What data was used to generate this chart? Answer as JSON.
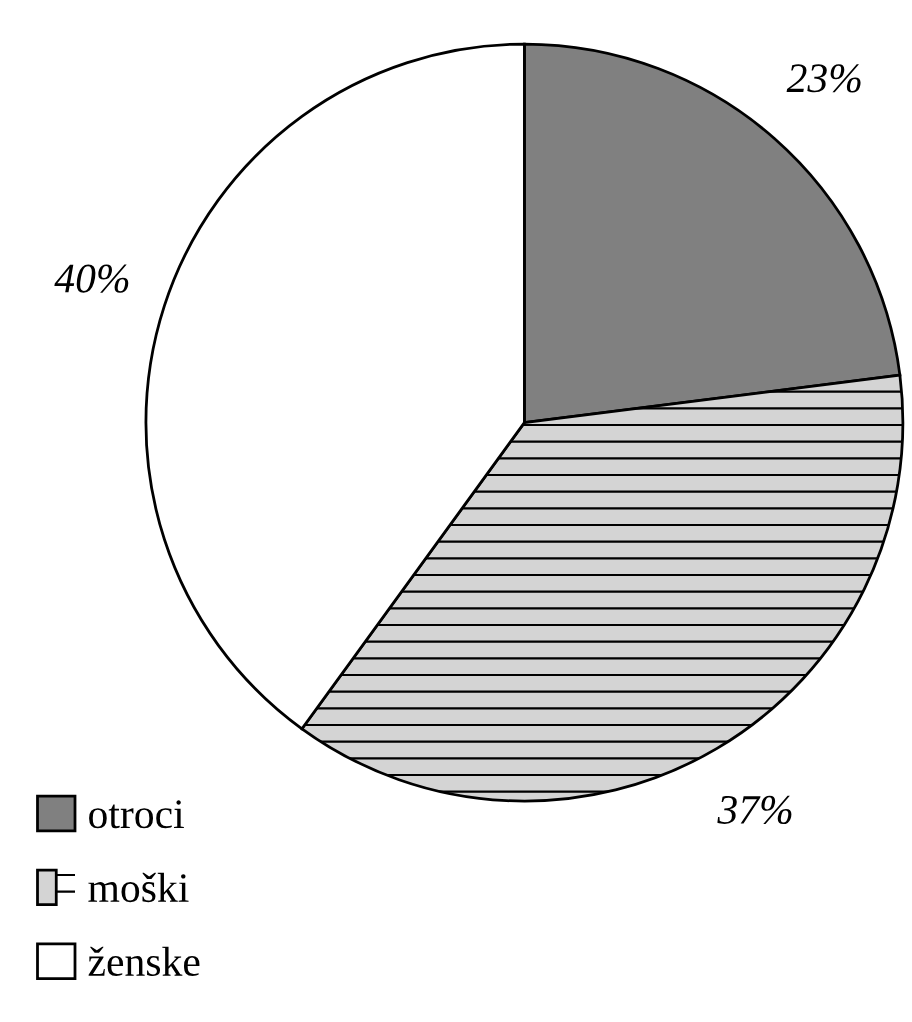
{
  "chart_data": {
    "type": "pie",
    "categories": [
      "otroci",
      "moški",
      "ženske"
    ],
    "values": [
      23,
      37,
      40
    ],
    "colors": [
      "#808080",
      "#d4d4d4",
      "#ffffff"
    ],
    "value_labels": [
      "23%",
      "37%",
      "40%"
    ],
    "legend": "bottom left"
  }
}
